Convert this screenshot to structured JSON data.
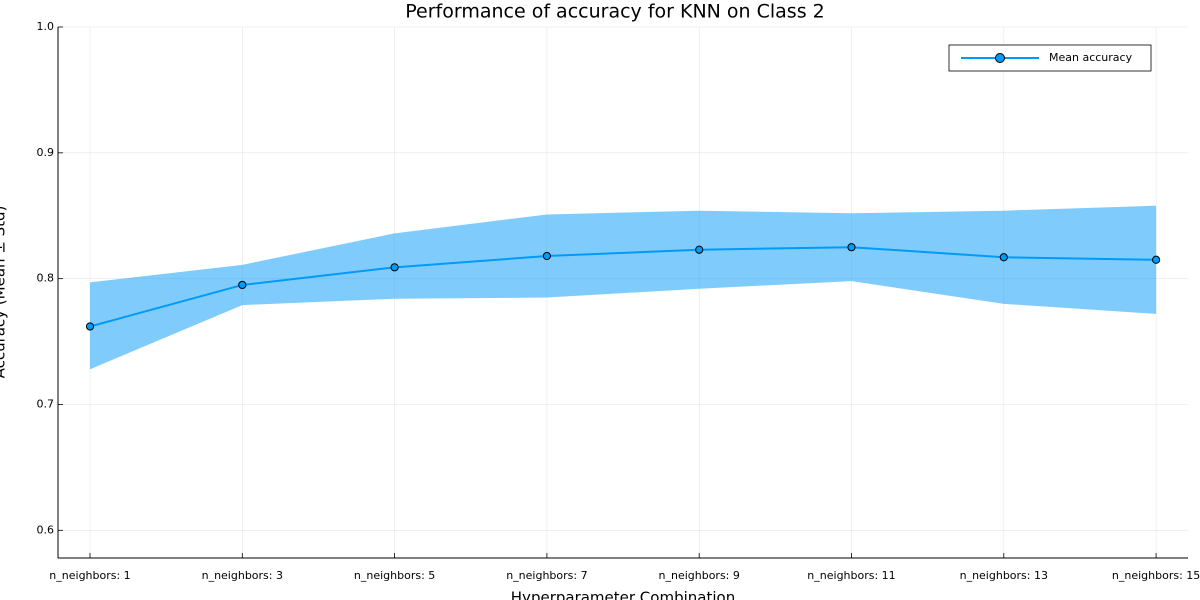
{
  "chart_data": {
    "type": "line",
    "title": "Performance of accuracy for KNN on Class 2",
    "x_label": "Hyperparameter Combination",
    "y_label": "Accuracy (Mean ± Std)",
    "categories": [
      "n_neighbors: 1",
      "n_neighbors: 3",
      "n_neighbors: 5",
      "n_neighbors: 7",
      "n_neighbors: 9",
      "n_neighbors: 11",
      "n_neighbors: 13",
      "n_neighbors: 15"
    ],
    "series": [
      {
        "name": "Mean accuracy",
        "color": "#009af9",
        "values": [
          0.762,
          0.795,
          0.809,
          0.818,
          0.823,
          0.825,
          0.817,
          0.815
        ],
        "upper": [
          0.797,
          0.811,
          0.836,
          0.851,
          0.854,
          0.852,
          0.854,
          0.858
        ],
        "lower": [
          0.728,
          0.779,
          0.784,
          0.785,
          0.792,
          0.798,
          0.78,
          0.772
        ]
      }
    ],
    "ylim": [
      0.578,
      1.0
    ],
    "yticks": [
      0.6,
      0.7,
      0.8,
      0.9,
      {
        "value": 1.0,
        "label": "1.0"
      }
    ],
    "grid": true,
    "legend": "top-right"
  }
}
